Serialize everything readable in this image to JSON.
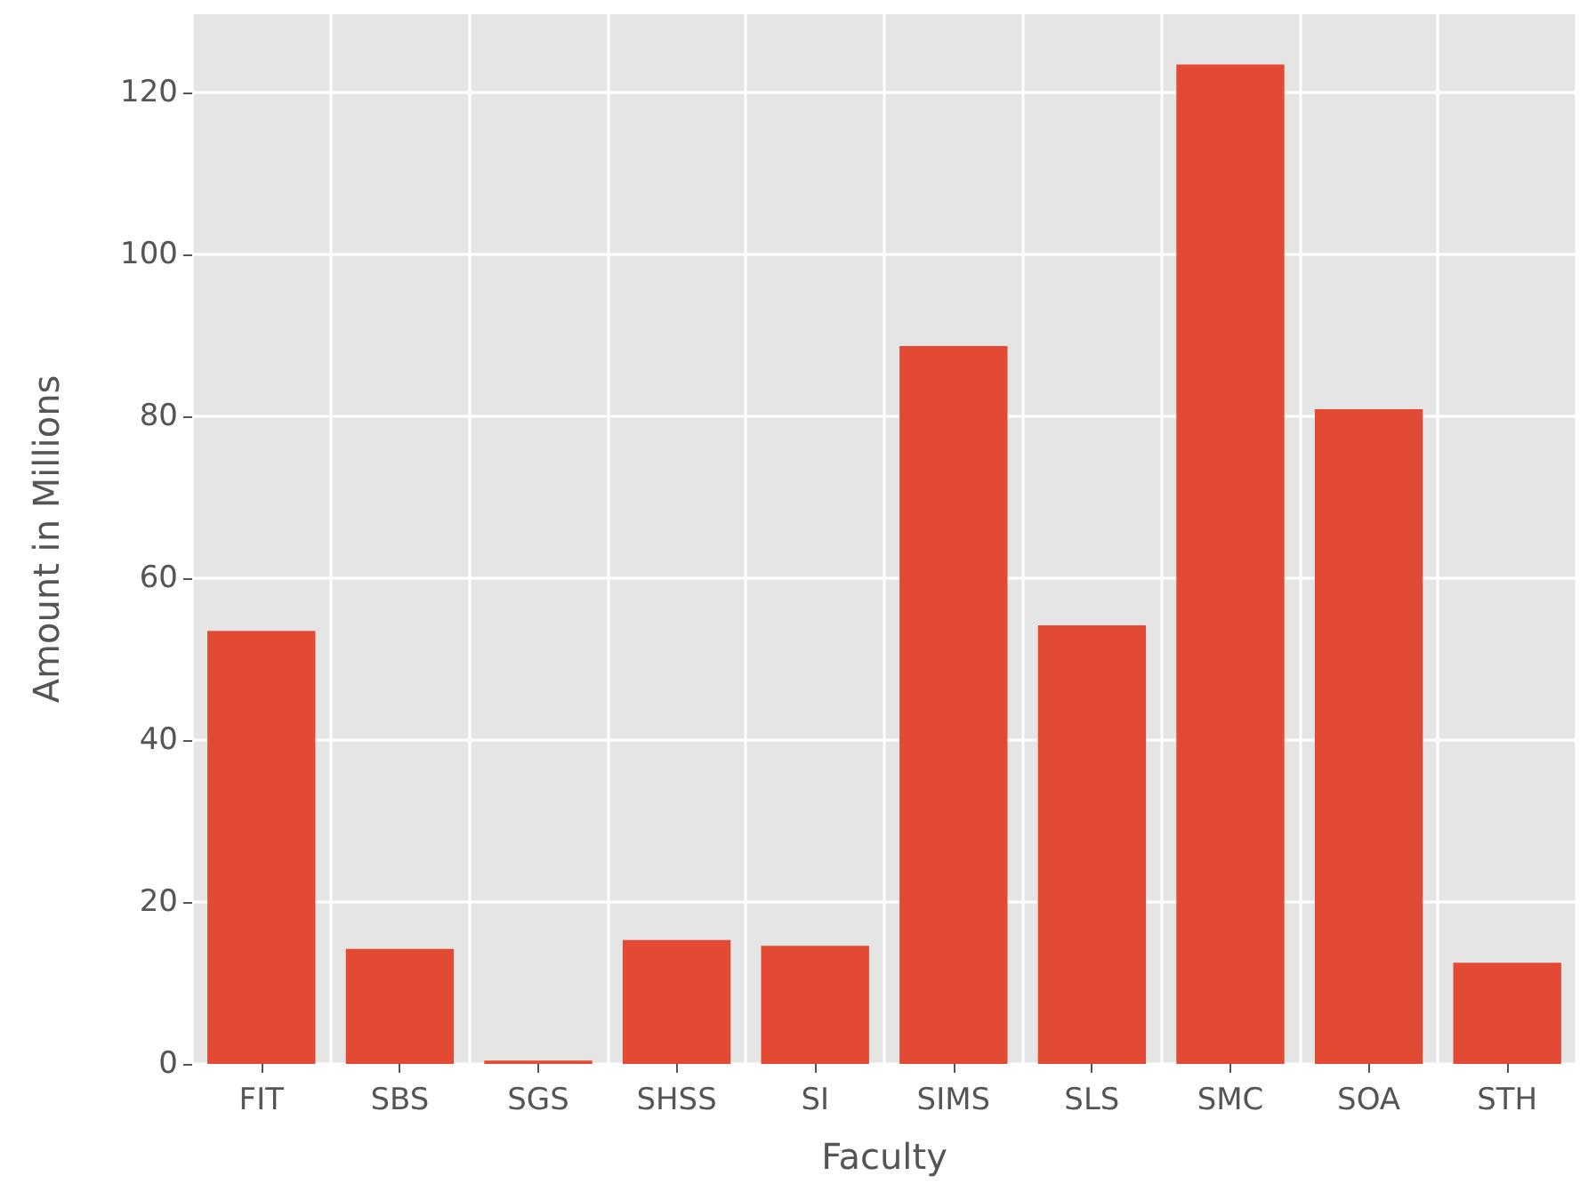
{
  "chart_data": {
    "type": "bar",
    "xlabel": "Faculty",
    "ylabel": "Amount in Millions",
    "categories": [
      "FIT",
      "SBS",
      "SGS",
      "SHSS",
      "SI",
      "SIMS",
      "SLS",
      "SMC",
      "SOA",
      "STH"
    ],
    "values": [
      53.5,
      14.2,
      0.4,
      15.3,
      14.6,
      88.7,
      54.2,
      123.5,
      80.9,
      12.5
    ],
    "color": "#e24a33",
    "ylim": [
      0,
      129.7
    ],
    "yticks": [
      0,
      20,
      40,
      60,
      80,
      100,
      120
    ],
    "grid": true
  }
}
